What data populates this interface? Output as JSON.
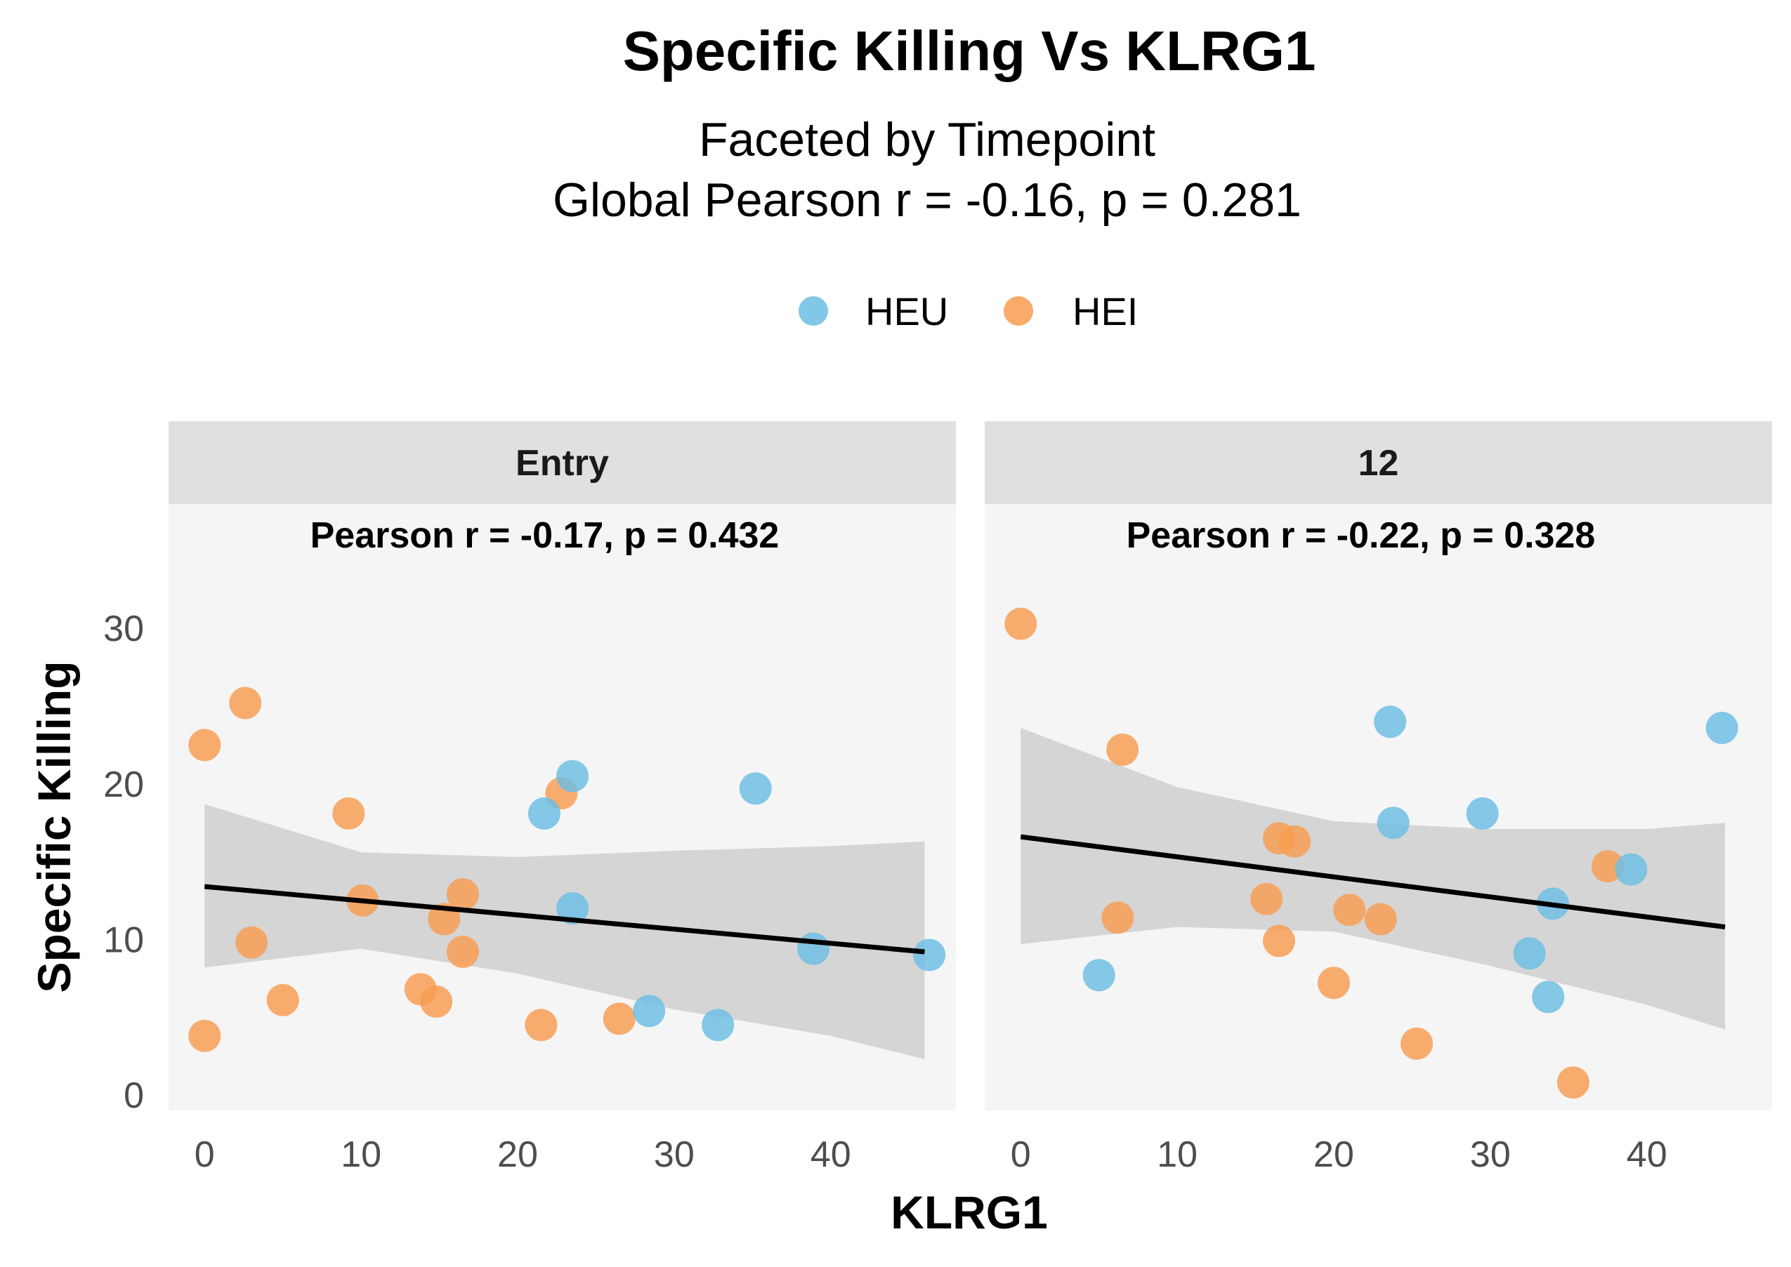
{
  "chart_data": {
    "type": "scatter",
    "title": "Specific Killing Vs KLRG1",
    "subtitle_lines": [
      "Faceted by Timepoint",
      "Global Pearson r = -0.16, p = 0.281"
    ],
    "xlabel": "KLRG1",
    "ylabel": "Specific Killing",
    "xlim": [
      -2.3,
      48
    ],
    "ylim": [
      -1,
      38
    ],
    "x_ticks": [
      0,
      10,
      20,
      30,
      40
    ],
    "y_ticks": [
      0,
      10,
      20,
      30
    ],
    "grid": false,
    "legend": {
      "position": "top",
      "entries": [
        {
          "name": "HEU",
          "color": "#6BBDE3"
        },
        {
          "name": "HEI",
          "color": "#F89C50"
        }
      ]
    },
    "colors": {
      "panel_background": "#F5F5F5",
      "strip_background": "#E0E0E0",
      "fit_line": "#000000",
      "confidence_band": "#BFBFBF"
    },
    "facets": [
      {
        "label": "Entry",
        "annotation": "Pearson r = -0.17, p = 0.432",
        "points": [
          {
            "group": "HEI",
            "x": 0,
            "y": 22.5
          },
          {
            "group": "HEI",
            "x": 2.6,
            "y": 25.2
          },
          {
            "group": "HEI",
            "x": 0,
            "y": 3.8
          },
          {
            "group": "HEI",
            "x": 3.0,
            "y": 9.8
          },
          {
            "group": "HEI",
            "x": 5.0,
            "y": 6.1
          },
          {
            "group": "HEI",
            "x": 9.2,
            "y": 18.1
          },
          {
            "group": "HEI",
            "x": 10.1,
            "y": 12.5
          },
          {
            "group": "HEI",
            "x": 13.8,
            "y": 6.8
          },
          {
            "group": "HEI",
            "x": 14.8,
            "y": 6.0
          },
          {
            "group": "HEI",
            "x": 15.3,
            "y": 11.3
          },
          {
            "group": "HEI",
            "x": 16.5,
            "y": 12.9
          },
          {
            "group": "HEI",
            "x": 16.5,
            "y": 9.2
          },
          {
            "group": "HEI",
            "x": 21.5,
            "y": 4.5
          },
          {
            "group": "HEI",
            "x": 22.8,
            "y": 19.4
          },
          {
            "group": "HEI",
            "x": 26.5,
            "y": 4.9
          },
          {
            "group": "HEU",
            "x": 21.7,
            "y": 18.1
          },
          {
            "group": "HEU",
            "x": 23.5,
            "y": 20.5
          },
          {
            "group": "HEU",
            "x": 23.5,
            "y": 12.0
          },
          {
            "group": "HEU",
            "x": 28.4,
            "y": 5.4
          },
          {
            "group": "HEU",
            "x": 32.8,
            "y": 4.5
          },
          {
            "group": "HEU",
            "x": 35.2,
            "y": 19.7
          },
          {
            "group": "HEU",
            "x": 38.9,
            "y": 9.4
          },
          {
            "group": "HEU",
            "x": 46.3,
            "y": 9.0
          }
        ],
        "fit": {
          "x": [
            0,
            10,
            20,
            30,
            40,
            46
          ],
          "y": [
            13.4,
            12.5,
            11.6,
            10.7,
            9.8,
            9.2
          ],
          "lower": [
            8.2,
            9.4,
            7.8,
            5.5,
            3.8,
            2.3
          ],
          "upper": [
            18.7,
            15.6,
            15.3,
            15.7,
            16.0,
            16.3
          ]
        }
      },
      {
        "label": "12",
        "annotation": "Pearson r = -0.22, p = 0.328",
        "points": [
          {
            "group": "HEI",
            "x": 0,
            "y": 30.3
          },
          {
            "group": "HEI",
            "x": 6.5,
            "y": 22.2
          },
          {
            "group": "HEI",
            "x": 6.2,
            "y": 11.4
          },
          {
            "group": "HEI",
            "x": 16.5,
            "y": 16.5
          },
          {
            "group": "HEI",
            "x": 17.5,
            "y": 16.3
          },
          {
            "group": "HEI",
            "x": 15.7,
            "y": 12.6
          },
          {
            "group": "HEI",
            "x": 16.5,
            "y": 9.9
          },
          {
            "group": "HEI",
            "x": 20.0,
            "y": 7.2
          },
          {
            "group": "HEI",
            "x": 21.0,
            "y": 11.9
          },
          {
            "group": "HEI",
            "x": 23.0,
            "y": 11.3
          },
          {
            "group": "HEI",
            "x": 25.3,
            "y": 3.3
          },
          {
            "group": "HEI",
            "x": 35.3,
            "y": 0.8
          },
          {
            "group": "HEI",
            "x": 37.5,
            "y": 14.7
          },
          {
            "group": "HEU",
            "x": 5.0,
            "y": 7.7
          },
          {
            "group": "HEU",
            "x": 23.6,
            "y": 24.0
          },
          {
            "group": "HEU",
            "x": 23.8,
            "y": 17.5
          },
          {
            "group": "HEU",
            "x": 29.5,
            "y": 18.1
          },
          {
            "group": "HEU",
            "x": 32.5,
            "y": 9.1
          },
          {
            "group": "HEU",
            "x": 33.7,
            "y": 6.3
          },
          {
            "group": "HEU",
            "x": 34.0,
            "y": 12.3
          },
          {
            "group": "HEU",
            "x": 39.0,
            "y": 14.5
          },
          {
            "group": "HEU",
            "x": 44.8,
            "y": 23.6
          }
        ],
        "fit": {
          "x": [
            0,
            10,
            20,
            30,
            40,
            45
          ],
          "y": [
            16.6,
            15.3,
            14.0,
            12.7,
            11.4,
            10.8
          ],
          "lower": [
            9.7,
            10.8,
            10.5,
            8.3,
            5.8,
            4.2
          ],
          "upper": [
            23.6,
            19.8,
            17.6,
            17.1,
            17.1,
            17.5
          ]
        }
      }
    ]
  }
}
